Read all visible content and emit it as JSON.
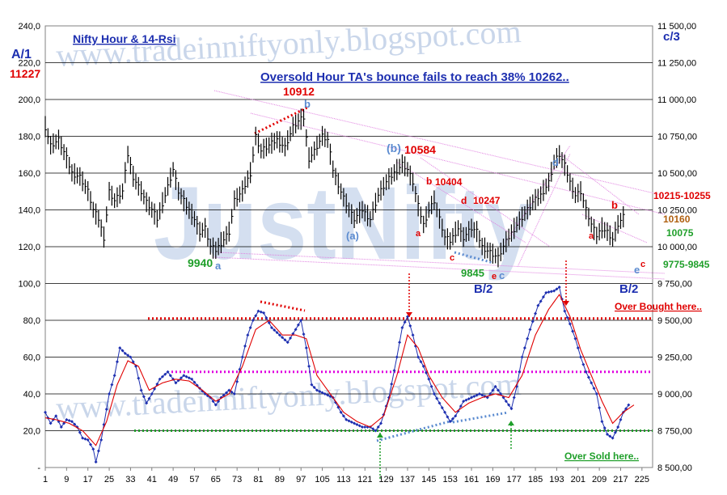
{
  "chart_data": {
    "type": "line",
    "title": "Nifty Hour & 14-Rsi",
    "subtitle": "Oversold Hour TA's bounce fails to reach 38% 10262..",
    "watermark_url": "www.tradeinniftyonly.blogspot.com",
    "watermark_big": "JustNifty",
    "left_axis": {
      "ticks": [
        "-",
        "20,0",
        "40,0",
        "60,0",
        "80,0",
        "100,0",
        "120,0",
        "140,0",
        "160,0",
        "180,0",
        "200,0",
        "220,0",
        "240,0"
      ],
      "ylim": [
        0,
        240
      ]
    },
    "right_axis": {
      "ticks": [
        "8 500,00",
        "8 750,00",
        "9 000,00",
        "9 250,00",
        "9 500,00",
        "9 750,00",
        "10 000,00",
        "10 250,00",
        "10 500,00",
        "10 750,00",
        "11 000,00",
        "11 250,00",
        "11 500,00"
      ],
      "ylim": [
        8500,
        11500
      ]
    },
    "x_ticks": [
      "1",
      "9",
      "17",
      "25",
      "33",
      "41",
      "49",
      "57",
      "65",
      "73",
      "81",
      "89",
      "97",
      "105",
      "113",
      "121",
      "129",
      "137",
      "145",
      "153",
      "161",
      "169",
      "177",
      "185",
      "193",
      "201",
      "209",
      "217",
      "225"
    ],
    "xlim": [
      1,
      229
    ],
    "price_anchors": [
      [
        1,
        185
      ],
      [
        3,
        175
      ],
      [
        6,
        178
      ],
      [
        9,
        168
      ],
      [
        11,
        160
      ],
      [
        14,
        158
      ],
      [
        17,
        150
      ],
      [
        19,
        140
      ],
      [
        21,
        135
      ],
      [
        23,
        125
      ],
      [
        25,
        150
      ],
      [
        27,
        145
      ],
      [
        30,
        150
      ],
      [
        32,
        170
      ],
      [
        34,
        158
      ],
      [
        37,
        150
      ],
      [
        39,
        144
      ],
      [
        41,
        140
      ],
      [
        43,
        135
      ],
      [
        46,
        148
      ],
      [
        49,
        162
      ],
      [
        51,
        150
      ],
      [
        54,
        142
      ],
      [
        57,
        135
      ],
      [
        59,
        128
      ],
      [
        61,
        130
      ],
      [
        63,
        120
      ],
      [
        65,
        118
      ],
      [
        67,
        122
      ],
      [
        70,
        128
      ],
      [
        72,
        145
      ],
      [
        75,
        150
      ],
      [
        78,
        160
      ],
      [
        80,
        180
      ],
      [
        82,
        172
      ],
      [
        85,
        175
      ],
      [
        88,
        178
      ],
      [
        91,
        174
      ],
      [
        94,
        185
      ],
      [
        96,
        188
      ],
      [
        98,
        190
      ],
      [
        100,
        168
      ],
      [
        102,
        172
      ],
      [
        105,
        180
      ],
      [
        107,
        178
      ],
      [
        109,
        162
      ],
      [
        112,
        150
      ],
      [
        115,
        140
      ],
      [
        117,
        135
      ],
      [
        120,
        140
      ],
      [
        123,
        135
      ],
      [
        126,
        148
      ],
      [
        129,
        155
      ],
      [
        132,
        160
      ],
      [
        135,
        165
      ],
      [
        137,
        162
      ],
      [
        139,
        155
      ],
      [
        141,
        142
      ],
      [
        143,
        132
      ],
      [
        145,
        140
      ],
      [
        147,
        145
      ],
      [
        149,
        135
      ],
      [
        151,
        125
      ],
      [
        153,
        123
      ],
      [
        156,
        130
      ],
      [
        158,
        125
      ],
      [
        161,
        130
      ],
      [
        163,
        128
      ],
      [
        165,
        120
      ],
      [
        167,
        118
      ],
      [
        169,
        116
      ],
      [
        171,
        114
      ],
      [
        173,
        120
      ],
      [
        175,
        125
      ],
      [
        178,
        132
      ],
      [
        181,
        138
      ],
      [
        184,
        144
      ],
      [
        187,
        148
      ],
      [
        190,
        155
      ],
      [
        192,
        166
      ],
      [
        194,
        170
      ],
      [
        196,
        164
      ],
      [
        198,
        155
      ],
      [
        200,
        148
      ],
      [
        202,
        150
      ],
      [
        204,
        140
      ],
      [
        206,
        132
      ],
      [
        208,
        126
      ],
      [
        210,
        130
      ],
      [
        212,
        128
      ],
      [
        214,
        124
      ],
      [
        216,
        132
      ],
      [
        218,
        136
      ]
    ],
    "rsi_anchors": [
      [
        1,
        30
      ],
      [
        3,
        24
      ],
      [
        5,
        28
      ],
      [
        7,
        22
      ],
      [
        9,
        26
      ],
      [
        11,
        25
      ],
      [
        13,
        22
      ],
      [
        15,
        16
      ],
      [
        17,
        15
      ],
      [
        19,
        10
      ],
      [
        20,
        3
      ],
      [
        22,
        15
      ],
      [
        25,
        40
      ],
      [
        27,
        50
      ],
      [
        29,
        65
      ],
      [
        31,
        62
      ],
      [
        33,
        60
      ],
      [
        35,
        55
      ],
      [
        37,
        42
      ],
      [
        39,
        35
      ],
      [
        41,
        40
      ],
      [
        44,
        48
      ],
      [
        47,
        52
      ],
      [
        50,
        46
      ],
      [
        53,
        50
      ],
      [
        56,
        48
      ],
      [
        59,
        43
      ],
      [
        61,
        40
      ],
      [
        63,
        38
      ],
      [
        65,
        34
      ],
      [
        67,
        38
      ],
      [
        70,
        42
      ],
      [
        72,
        40
      ],
      [
        75,
        60
      ],
      [
        77,
        72
      ],
      [
        79,
        80
      ],
      [
        81,
        85
      ],
      [
        83,
        84
      ],
      [
        86,
        76
      ],
      [
        89,
        72
      ],
      [
        92,
        68
      ],
      [
        95,
        75
      ],
      [
        97,
        80
      ],
      [
        99,
        65
      ],
      [
        101,
        45
      ],
      [
        103,
        42
      ],
      [
        106,
        40
      ],
      [
        109,
        38
      ],
      [
        112,
        30
      ],
      [
        114,
        26
      ],
      [
        117,
        24
      ],
      [
        120,
        22
      ],
      [
        123,
        22
      ],
      [
        125,
        20
      ],
      [
        127,
        24
      ],
      [
        130,
        38
      ],
      [
        133,
        60
      ],
      [
        135,
        76
      ],
      [
        137,
        82
      ],
      [
        139,
        72
      ],
      [
        141,
        60
      ],
      [
        143,
        55
      ],
      [
        145,
        48
      ],
      [
        147,
        40
      ],
      [
        149,
        35
      ],
      [
        151,
        30
      ],
      [
        153,
        25
      ],
      [
        155,
        28
      ],
      [
        158,
        36
      ],
      [
        161,
        38
      ],
      [
        164,
        40
      ],
      [
        167,
        38
      ],
      [
        170,
        44
      ],
      [
        172,
        40
      ],
      [
        174,
        36
      ],
      [
        176,
        32
      ],
      [
        178,
        44
      ],
      [
        180,
        60
      ],
      [
        183,
        75
      ],
      [
        186,
        88
      ],
      [
        189,
        95
      ],
      [
        192,
        96
      ],
      [
        194,
        98
      ],
      [
        196,
        85
      ],
      [
        198,
        78
      ],
      [
        200,
        70
      ],
      [
        202,
        60
      ],
      [
        204,
        52
      ],
      [
        206,
        46
      ],
      [
        208,
        40
      ],
      [
        210,
        25
      ],
      [
        212,
        18
      ],
      [
        214,
        16
      ],
      [
        216,
        22
      ],
      [
        218,
        30
      ],
      [
        220,
        34
      ]
    ],
    "rsi_ma_anchors": [
      [
        1,
        27
      ],
      [
        5,
        26
      ],
      [
        10,
        24
      ],
      [
        15,
        20
      ],
      [
        20,
        12
      ],
      [
        24,
        25
      ],
      [
        28,
        45
      ],
      [
        32,
        58
      ],
      [
        36,
        55
      ],
      [
        40,
        42
      ],
      [
        45,
        46
      ],
      [
        50,
        48
      ],
      [
        55,
        47
      ],
      [
        60,
        42
      ],
      [
        65,
        36
      ],
      [
        70,
        40
      ],
      [
        75,
        55
      ],
      [
        80,
        75
      ],
      [
        85,
        80
      ],
      [
        90,
        72
      ],
      [
        95,
        72
      ],
      [
        99,
        70
      ],
      [
        103,
        50
      ],
      [
        108,
        40
      ],
      [
        113,
        30
      ],
      [
        118,
        25
      ],
      [
        123,
        22
      ],
      [
        128,
        28
      ],
      [
        133,
        50
      ],
      [
        137,
        72
      ],
      [
        141,
        65
      ],
      [
        145,
        50
      ],
      [
        150,
        38
      ],
      [
        155,
        30
      ],
      [
        160,
        35
      ],
      [
        165,
        38
      ],
      [
        170,
        40
      ],
      [
        175,
        38
      ],
      [
        180,
        50
      ],
      [
        185,
        72
      ],
      [
        190,
        86
      ],
      [
        194,
        94
      ],
      [
        198,
        82
      ],
      [
        202,
        64
      ],
      [
        206,
        50
      ],
      [
        210,
        36
      ],
      [
        214,
        24
      ],
      [
        218,
        30
      ],
      [
        222,
        34
      ]
    ],
    "annotations": [
      {
        "text": "A/1",
        "color": "#1d2fb0"
      },
      {
        "text": "11227",
        "color": "#e00000"
      },
      {
        "text": "c/3",
        "color": "#1d2fb0"
      },
      {
        "text": "10912",
        "color": "#e00000"
      },
      {
        "text": "b",
        "color": "#5b8bd0"
      },
      {
        "text": "(b)",
        "color": "#5b8bd0"
      },
      {
        "text": "10584",
        "color": "#e00000"
      },
      {
        "text": "b",
        "color": "#e00000"
      },
      {
        "text": "10404",
        "color": "#e00000"
      },
      {
        "text": "d",
        "color": "#e00000"
      },
      {
        "text": "10247",
        "color": "#e00000"
      },
      {
        "text": "a",
        "color": "#e00000"
      },
      {
        "text": "c",
        "color": "#e00000"
      },
      {
        "text": "9845",
        "color": "#1f9f2a"
      },
      {
        "text": "e",
        "color": "#e00000"
      },
      {
        "text": "c",
        "color": "#5b8bd0"
      },
      {
        "text": "B/2",
        "color": "#1d2fb0"
      },
      {
        "text": "(a)",
        "color": "#5b8bd0"
      },
      {
        "text": "9940",
        "color": "#1f9f2a"
      },
      {
        "text": "a",
        "color": "#5b8bd0"
      },
      {
        "text": "d",
        "color": "#5b8bd0"
      },
      {
        "text": "10215-10255",
        "color": "#e00000"
      },
      {
        "text": "b",
        "color": "#e00000"
      },
      {
        "text": "10160",
        "color": "#b06010"
      },
      {
        "text": "a",
        "color": "#e00000"
      },
      {
        "text": "10075",
        "color": "#1f9f2a"
      },
      {
        "text": "e",
        "color": "#5b8bd0"
      },
      {
        "text": "c",
        "color": "#e00000"
      },
      {
        "text": "9775-9845",
        "color": "#1f9f2a"
      },
      {
        "text": "B/2",
        "color": "#1d2fb0"
      },
      {
        "text": "Over Bought here..",
        "color": "#e00000"
      },
      {
        "text": "Over Sold here..",
        "color": "#1f9f2a"
      }
    ],
    "reference_levels": [
      {
        "name": "over-bought",
        "value": 81,
        "color": "#e00000"
      },
      {
        "name": "mid",
        "value": 52,
        "color": "#e000e0"
      },
      {
        "name": "over-sold",
        "value": 20,
        "color": "#1f9f2a"
      }
    ],
    "colors": {
      "price": "#000000",
      "rsi": "#1d2fb0",
      "rsi_ma": "#e00000",
      "channel": "#e080e0"
    },
    "grid": true
  }
}
